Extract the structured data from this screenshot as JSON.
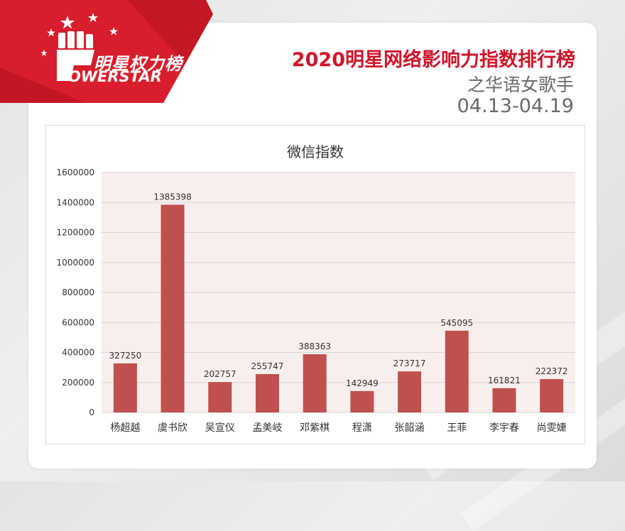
{
  "header": {
    "logo_cn": "明星权力榜",
    "logo_en": "OWERSTAR",
    "title": "2020明星网络影响力指数排行榜",
    "subtitle": "之华语女歌手",
    "date_range": "04.13-04.19"
  },
  "colors": {
    "accent": "#d0142a",
    "bar": "#c0504d",
    "plot_bg": "#f9eeee",
    "ribbon": "#d81e2c"
  },
  "chart_data": {
    "type": "bar",
    "title": "微信指数",
    "xlabel": "",
    "ylabel": "",
    "categories": [
      "杨超越",
      "虞书欣",
      "吴宣仪",
      "孟美岐",
      "邓紫棋",
      "程潇",
      "张韶涵",
      "王菲",
      "李宇春",
      "尚雯婕"
    ],
    "values": [
      327250,
      1385398,
      202757,
      255747,
      388363,
      142949,
      273717,
      545095,
      161821,
      222372
    ],
    "ylim": [
      0,
      1600000
    ],
    "yticks": [
      0,
      200000,
      400000,
      600000,
      800000,
      1000000,
      1200000,
      1400000,
      1600000
    ],
    "data_labels": true,
    "grid": true,
    "legend": "none"
  }
}
